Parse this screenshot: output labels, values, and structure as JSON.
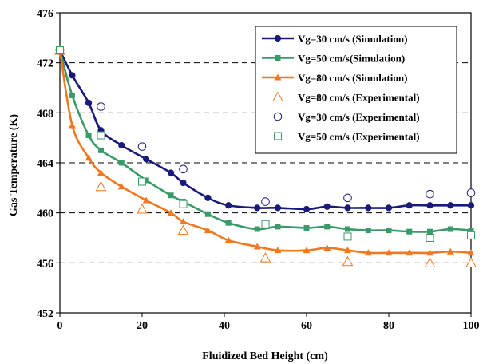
{
  "chart_data": {
    "type": "line",
    "title": "",
    "xlabel": "Fluidized Bed Height (cm)",
    "ylabel": "Gas Temperature (K)",
    "xlim": [
      0,
      100
    ],
    "ylim": [
      452,
      476
    ],
    "xticks": [
      0,
      20,
      40,
      60,
      80,
      100
    ],
    "yticks": [
      452,
      456,
      460,
      464,
      468,
      472,
      476
    ],
    "grid": "horizontal dashed",
    "legend_placement": "top-right",
    "series": [
      {
        "name": "Vg=30 cm/s (Simulation)",
        "kind": "line-marker",
        "marker": "circle-filled",
        "color": "#1a1a7a",
        "x": [
          0,
          3,
          7,
          10,
          15,
          21,
          27,
          30,
          36,
          41,
          48,
          53,
          60,
          65,
          70,
          75,
          80,
          85,
          90,
          95,
          100
        ],
        "y": [
          473.0,
          471.0,
          468.8,
          466.6,
          465.4,
          464.3,
          463.2,
          462.4,
          461.2,
          460.6,
          460.4,
          460.4,
          460.3,
          460.5,
          460.4,
          460.4,
          460.4,
          460.6,
          460.6,
          460.6,
          460.6
        ]
      },
      {
        "name": "Vg=50 cm/s(Simulation)",
        "kind": "line-marker",
        "marker": "square-filled",
        "color": "#3a9a6a",
        "x": [
          0,
          3,
          7,
          10,
          15,
          21,
          27,
          30,
          36,
          41,
          48,
          53,
          60,
          65,
          70,
          75,
          80,
          85,
          90,
          95,
          100
        ],
        "y": [
          473.0,
          469.4,
          466.2,
          465.0,
          464.0,
          462.6,
          461.4,
          460.9,
          459.9,
          459.2,
          458.7,
          458.9,
          458.8,
          458.9,
          458.7,
          458.6,
          458.6,
          458.5,
          458.5,
          458.7,
          458.6
        ]
      },
      {
        "name": "Vg=80 cm/s (Simulation)",
        "kind": "line-marker",
        "marker": "triangle-filled",
        "color": "#f07820",
        "x": [
          0,
          3,
          7,
          10,
          15,
          21,
          27,
          30,
          36,
          41,
          48,
          53,
          60,
          65,
          70,
          75,
          80,
          85,
          90,
          95,
          100
        ],
        "y": [
          473.0,
          467.0,
          464.4,
          463.2,
          462.1,
          461.0,
          460.0,
          459.3,
          458.6,
          457.8,
          457.3,
          457.0,
          457.0,
          457.2,
          457.0,
          456.8,
          456.8,
          456.8,
          456.8,
          456.9,
          456.8
        ]
      },
      {
        "name": "Vg=80 cm/s (Experimental)",
        "kind": "marker",
        "marker": "triangle-open",
        "color": "#f07820",
        "x": [
          0,
          10,
          20,
          30,
          50,
          70,
          90,
          100
        ],
        "y": [
          473.0,
          462.1,
          460.3,
          458.6,
          456.4,
          456.1,
          456.0,
          456.0
        ]
      },
      {
        "name": "Vg=30 cm/s (Experimental)",
        "kind": "marker",
        "marker": "circle-open",
        "color": "#1a1a7a",
        "x": [
          0,
          10,
          20,
          30,
          50,
          70,
          90,
          100
        ],
        "y": [
          473.0,
          468.5,
          465.3,
          463.5,
          460.9,
          461.2,
          461.5,
          461.6
        ]
      },
      {
        "name": "Vg=50 cm/s (Experimental)",
        "kind": "marker",
        "marker": "square-open",
        "color": "#3a9a6a",
        "x": [
          0,
          10,
          20,
          30,
          50,
          70,
          90,
          100
        ],
        "y": [
          473.0,
          466.2,
          462.5,
          460.7,
          459.1,
          458.1,
          458.0,
          458.2
        ]
      }
    ]
  }
}
